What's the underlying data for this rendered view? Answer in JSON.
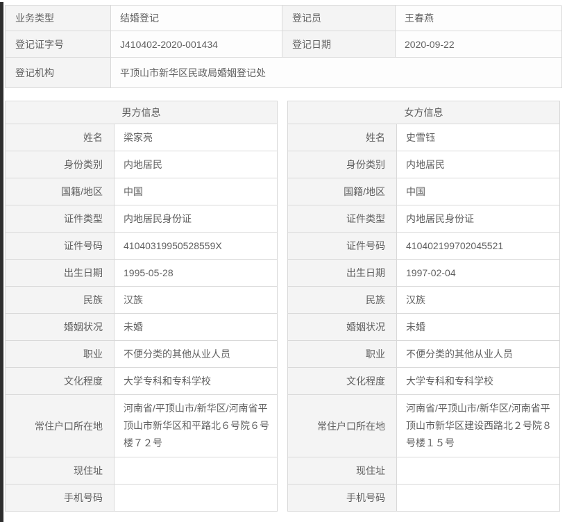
{
  "registration": {
    "rows": [
      {
        "label1": "业务类型",
        "value1": "结婚登记",
        "label2": "登记员",
        "value2": "王春燕"
      },
      {
        "label1": "登记证字号",
        "value1": "J410402-2020-001434",
        "label2": "登记日期",
        "value2": "2020-09-22"
      },
      {
        "label1": "登记机构",
        "value1": "平顶山市新华区民政局婚姻登记处"
      }
    ]
  },
  "male": {
    "title": "男方信息",
    "fields": [
      {
        "label": "姓名",
        "value": "梁家亮"
      },
      {
        "label": "身份类别",
        "value": "内地居民"
      },
      {
        "label": "国籍/地区",
        "value": "中国"
      },
      {
        "label": "证件类型",
        "value": "内地居民身份证"
      },
      {
        "label": "证件号码",
        "value": "41040319950528559X"
      },
      {
        "label": "出生日期",
        "value": "1995-05-28"
      },
      {
        "label": "民族",
        "value": "汉族"
      },
      {
        "label": "婚姻状况",
        "value": "未婚"
      },
      {
        "label": "职业",
        "value": "不便分类的其他从业人员"
      },
      {
        "label": "文化程度",
        "value": "大学专科和专科学校"
      },
      {
        "label": "常住户口所在地",
        "value": "河南省/平顶山市/新华区/河南省平顶山市新华区和平路北６号院６号楼７２号"
      },
      {
        "label": "现住址",
        "value": ""
      },
      {
        "label": "手机号码",
        "value": ""
      }
    ]
  },
  "female": {
    "title": "女方信息",
    "fields": [
      {
        "label": "姓名",
        "value": "史雪钰"
      },
      {
        "label": "身份类别",
        "value": "内地居民"
      },
      {
        "label": "国籍/地区",
        "value": "中国"
      },
      {
        "label": "证件类型",
        "value": "内地居民身份证"
      },
      {
        "label": "证件号码",
        "value": "410402199702045521"
      },
      {
        "label": "出生日期",
        "value": "1997-02-04"
      },
      {
        "label": "民族",
        "value": "汉族"
      },
      {
        "label": "婚姻状况",
        "value": "未婚"
      },
      {
        "label": "职业",
        "value": "不便分类的其他从业人员"
      },
      {
        "label": "文化程度",
        "value": "大学专科和专科学校"
      },
      {
        "label": "常住户口所在地",
        "value": "河南省/平顶山市/新华区/河南省平顶山市新华区建设西路北２号院８号楼１５号"
      },
      {
        "label": "现住址",
        "value": ""
      },
      {
        "label": "手机号码",
        "value": ""
      }
    ]
  }
}
